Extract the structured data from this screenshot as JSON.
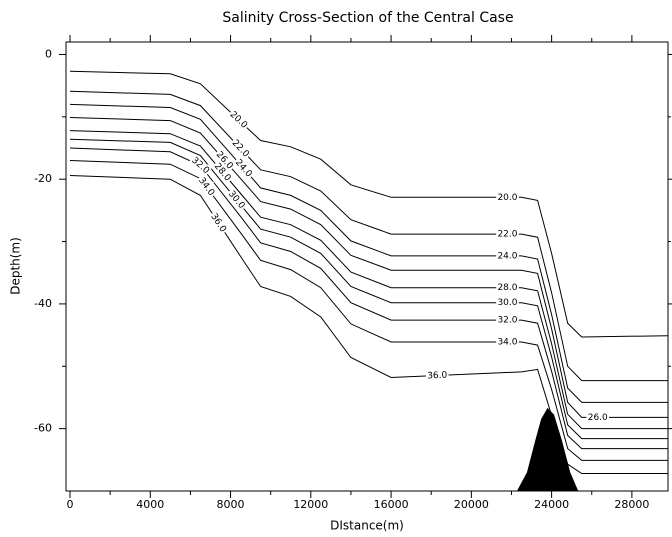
{
  "chart_data": {
    "type": "contour",
    "title": "Salinity Cross-Section of the Central Case",
    "x_label": "DIstance(m)",
    "y_label": "Depth(m)",
    "color": "#000000",
    "xlim": [
      -200,
      29800
    ],
    "ylim": [
      -70,
      2
    ],
    "xticks": [
      0,
      4000,
      8000,
      12000,
      16000,
      20000,
      24000,
      28000
    ],
    "xminorticks": [
      2000,
      6000,
      10000,
      14000,
      18000,
      22000,
      26000
    ],
    "yticks": [
      0,
      -20,
      -40,
      -60
    ],
    "yminorticks": [
      -10,
      -30,
      -50
    ],
    "series": [
      {
        "name": "20.0",
        "x": [
          0,
          5000,
          6500,
          8500,
          9500,
          11000,
          12500,
          14000,
          16000,
          22500,
          23300,
          24000,
          24800,
          25500,
          29800
        ],
        "values": [
          -2.7,
          -3.1,
          -4.7,
          -10.8,
          -13.8,
          -14.8,
          -16.8,
          -20.9,
          -22.9,
          -22.9,
          -23.4,
          -31.9,
          -43.1,
          -45.3,
          -45.1
        ]
      },
      {
        "name": "22.0",
        "x": [
          0,
          5000,
          6500,
          8500,
          9500,
          11000,
          12500,
          14000,
          16000,
          22500,
          23300,
          24000,
          24800,
          25500,
          29800
        ],
        "values": [
          -5.9,
          -6.4,
          -8.2,
          -15.1,
          -18.5,
          -19.6,
          -21.9,
          -26.5,
          -28.8,
          -28.8,
          -29.3,
          -38.2,
          -50.0,
          -52.3,
          -52.3
        ]
      },
      {
        "name": "24.0",
        "x": [
          0,
          5000,
          6500,
          8500,
          9500,
          11000,
          12500,
          14000,
          16000,
          22500,
          23300,
          24000,
          24800,
          25500,
          29800
        ],
        "values": [
          -8.0,
          -8.5,
          -10.4,
          -17.7,
          -21.4,
          -22.6,
          -25.0,
          -29.9,
          -32.3,
          -32.3,
          -32.8,
          -41.7,
          -53.5,
          -55.8,
          -55.8
        ]
      },
      {
        "name": "26.0",
        "x": [
          0,
          5000,
          6500,
          8500,
          9500,
          11000,
          12500,
          14000,
          16000,
          22500,
          23300,
          24000,
          24800,
          25500,
          29800
        ],
        "values": [
          -10.1,
          -10.6,
          -12.6,
          -19.9,
          -23.6,
          -24.8,
          -27.3,
          -32.2,
          -34.6,
          -34.6,
          -35.1,
          -44.0,
          -55.8,
          -58.2,
          -58.2
        ]
      },
      {
        "name": "28.0",
        "x": [
          0,
          5000,
          6500,
          8500,
          9500,
          11000,
          12500,
          14000,
          16000,
          22500,
          23300,
          24000,
          24800,
          25500,
          29800
        ],
        "values": [
          -12.2,
          -12.7,
          -14.7,
          -22.3,
          -26.1,
          -27.3,
          -29.8,
          -34.9,
          -37.4,
          -37.4,
          -37.9,
          -46.4,
          -57.7,
          -60.0,
          -60.0
        ]
      },
      {
        "name": "30.0",
        "x": [
          0,
          5000,
          6500,
          8500,
          9500,
          11000,
          12500,
          14000,
          16000,
          22500,
          23300,
          24000,
          24800,
          25500,
          29800
        ],
        "values": [
          -13.6,
          -14.1,
          -16.2,
          -24.1,
          -28.0,
          -29.3,
          -31.9,
          -37.2,
          -39.8,
          -39.8,
          -40.3,
          -48.5,
          -59.4,
          -61.6,
          -61.6
        ]
      },
      {
        "name": "32.0",
        "x": [
          0,
          5000,
          6500,
          8500,
          9500,
          11000,
          12500,
          14000,
          16000,
          22500,
          23300,
          24000,
          24800,
          25500,
          29800
        ],
        "values": [
          -15.0,
          -15.6,
          -17.8,
          -26.0,
          -30.2,
          -31.6,
          -34.3,
          -39.8,
          -42.6,
          -42.6,
          -43.1,
          -50.8,
          -61.1,
          -63.2,
          -63.2
        ]
      },
      {
        "name": "34.0",
        "x": [
          0,
          5000,
          6500,
          8500,
          9500,
          11000,
          12500,
          14000,
          16000,
          22500,
          23300,
          24000,
          24800,
          25500,
          29800
        ],
        "values": [
          -17.0,
          -17.6,
          -19.9,
          -28.6,
          -33.0,
          -34.5,
          -37.4,
          -43.2,
          -46.1,
          -46.1,
          -46.6,
          -53.7,
          -63.2,
          -65.1,
          -65.1
        ]
      },
      {
        "name": "36.0",
        "x": [
          0,
          5000,
          6500,
          8500,
          9500,
          11000,
          12500,
          14000,
          16000,
          22500,
          23300,
          24000,
          24800,
          25500,
          29800
        ],
        "values": [
          -19.4,
          -20.0,
          -22.6,
          -32.4,
          -37.2,
          -38.8,
          -42.1,
          -48.6,
          -51.8,
          -50.9,
          -50.5,
          -57.9,
          -65.7,
          -67.2,
          -67.2
        ]
      }
    ],
    "topography": {
      "x": [
        22300,
        22800,
        23200,
        23500,
        23800,
        24100,
        24500,
        24900,
        25300
      ],
      "values": [
        -70,
        -67,
        -62,
        -58.5,
        -56.8,
        -57.8,
        -62,
        -67,
        -70
      ],
      "color": "#000000"
    }
  }
}
